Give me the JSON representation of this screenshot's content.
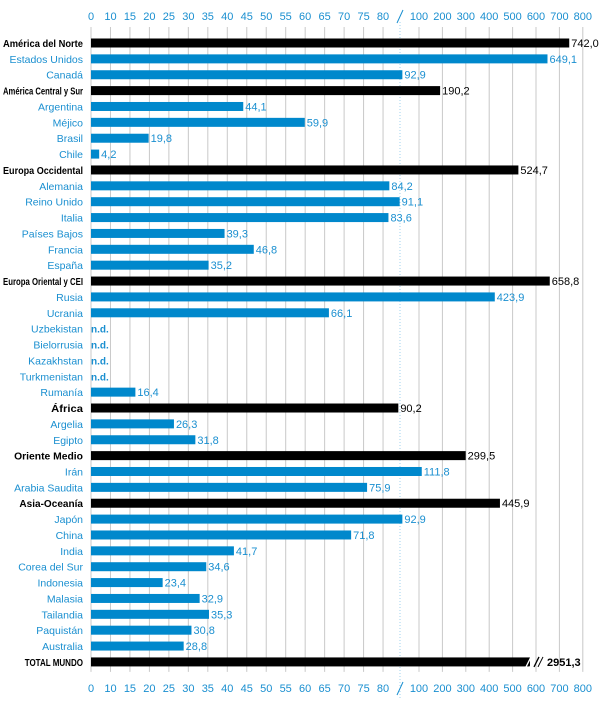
{
  "chart_data": {
    "type": "bar",
    "orientation": "horizontal",
    "title": "",
    "xlabel": "",
    "ylabel": "",
    "axis_break": true,
    "xlim": [
      0,
      800
    ],
    "x_tick_labels": [
      "0",
      "10",
      "15",
      "20",
      "25",
      "30",
      "35",
      "40",
      "45",
      "50",
      "55",
      "60",
      "65",
      "70",
      "75",
      "80",
      "100",
      "200",
      "300",
      "400",
      "500",
      "600",
      "700",
      "800"
    ],
    "grid": true,
    "colors": {
      "region": "#000000",
      "country": "#0088cc",
      "label_country": "#1a8fd0"
    },
    "not_available_label": "n.d.",
    "rows": [
      {
        "label": "América del Norte",
        "kind": "region",
        "value": 742.0
      },
      {
        "label": "Estados Unidos",
        "kind": "country",
        "value": 649.1
      },
      {
        "label": "Canadá",
        "kind": "country",
        "value": 92.9
      },
      {
        "label": "América Central y Sur",
        "kind": "region",
        "value": 190.2
      },
      {
        "label": "Argentina",
        "kind": "country",
        "value": 44.1
      },
      {
        "label": "Méjico",
        "kind": "country",
        "value": 59.9
      },
      {
        "label": "Brasil",
        "kind": "country",
        "value": 19.8
      },
      {
        "label": "Chile",
        "kind": "country",
        "value": 4.2
      },
      {
        "label": "Europa Occidental",
        "kind": "region",
        "value": 524.7
      },
      {
        "label": "Alemania",
        "kind": "country",
        "value": 84.2
      },
      {
        "label": "Reino Unido",
        "kind": "country",
        "value": 91.1
      },
      {
        "label": "Italia",
        "kind": "country",
        "value": 83.6
      },
      {
        "label": "Países Bajos",
        "kind": "country",
        "value": 39.3
      },
      {
        "label": "Francia",
        "kind": "country",
        "value": 46.8
      },
      {
        "label": "España",
        "kind": "country",
        "value": 35.2
      },
      {
        "label": "Europa Oriental y CEI",
        "kind": "region",
        "value": 658.8
      },
      {
        "label": "Rusia",
        "kind": "country",
        "value": 423.9
      },
      {
        "label": "Ucrania",
        "kind": "country",
        "value": 66.1
      },
      {
        "label": "Uzbekistan",
        "kind": "country",
        "value": null
      },
      {
        "label": "Bielorrusia",
        "kind": "country",
        "value": null
      },
      {
        "label": "Kazakhstan",
        "kind": "country",
        "value": null
      },
      {
        "label": "Turkmenistan",
        "kind": "country",
        "value": null
      },
      {
        "label": "Rumanía",
        "kind": "country",
        "value": 16.4
      },
      {
        "label": "África",
        "kind": "region",
        "value": 90.2
      },
      {
        "label": "Argelia",
        "kind": "country",
        "value": 26.3
      },
      {
        "label": "Egipto",
        "kind": "country",
        "value": 31.8
      },
      {
        "label": "Oriente Medio",
        "kind": "region",
        "value": 299.5
      },
      {
        "label": "Irán",
        "kind": "country",
        "value": 111.8
      },
      {
        "label": "Arabia Saudita",
        "kind": "country",
        "value": 75.9
      },
      {
        "label": "Asia-Oceanía",
        "kind": "region",
        "value": 445.9
      },
      {
        "label": "Japón",
        "kind": "country",
        "value": 92.9
      },
      {
        "label": "China",
        "kind": "country",
        "value": 71.8
      },
      {
        "label": "India",
        "kind": "country",
        "value": 41.7
      },
      {
        "label": "Corea del Sur",
        "kind": "country",
        "value": 34.6
      },
      {
        "label": "Indonesia",
        "kind": "country",
        "value": 23.4
      },
      {
        "label": "Malasia",
        "kind": "country",
        "value": 32.9
      },
      {
        "label": "Tailandia",
        "kind": "country",
        "value": 35.3
      },
      {
        "label": "Paquistán",
        "kind": "country",
        "value": 30.8
      },
      {
        "label": "Australia",
        "kind": "country",
        "value": 28.8
      },
      {
        "label": "TOTAL MUNDO",
        "kind": "total",
        "value": 2951.3
      }
    ]
  }
}
